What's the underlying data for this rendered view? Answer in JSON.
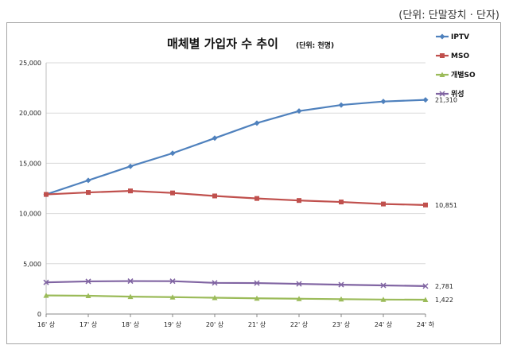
{
  "unit_note": "(단위: 단말장치 · 단자)",
  "chart_data": {
    "type": "line",
    "title": "매체별 가입자 수 추이",
    "title_unit": "(단위: 천명)",
    "categories": [
      "16' 상",
      "17' 상",
      "18' 상",
      "19' 상",
      "20' 상",
      "21' 상",
      "22' 상",
      "23' 상",
      "24' 상",
      "24' 하"
    ],
    "ylim": [
      0,
      25000
    ],
    "yticks": [
      "0",
      "5,000",
      "10,000",
      "15,000",
      "20,000",
      "25,000"
    ],
    "ytick_values": [
      0,
      5000,
      10000,
      15000,
      20000,
      25000
    ],
    "legend_position": "right",
    "series": [
      {
        "name": "IPTV",
        "color": "#4f81bd",
        "marker": "diamond",
        "values": [
          11900,
          13300,
          14700,
          16000,
          17500,
          19000,
          20200,
          20800,
          21150,
          21310
        ],
        "end_label": "21,310"
      },
      {
        "name": "MSO",
        "color": "#c0504d",
        "marker": "square",
        "values": [
          11900,
          12100,
          12250,
          12050,
          11750,
          11500,
          11300,
          11150,
          10950,
          10851
        ],
        "end_label": "10,851"
      },
      {
        "name": "개별SO",
        "color": "#9bbb59",
        "marker": "triangle",
        "values": [
          1850,
          1820,
          1730,
          1680,
          1620,
          1560,
          1520,
          1480,
          1440,
          1422
        ],
        "end_label": "1,422"
      },
      {
        "name": "위성",
        "color": "#8064a2",
        "marker": "x",
        "values": [
          3150,
          3250,
          3280,
          3270,
          3100,
          3080,
          3000,
          2920,
          2850,
          2781
        ],
        "end_label": "2,781"
      }
    ]
  }
}
